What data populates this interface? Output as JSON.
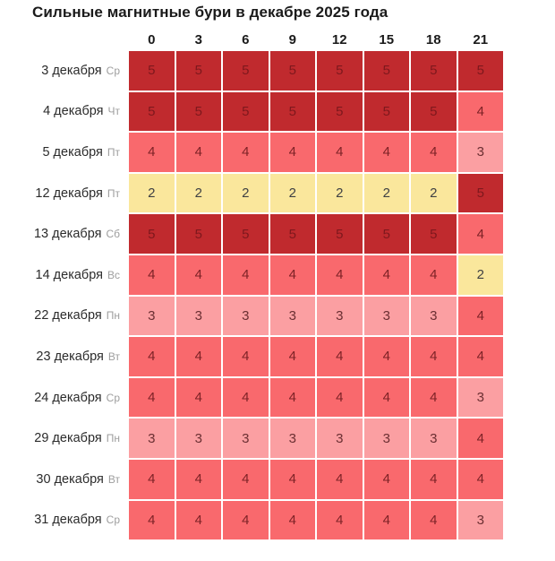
{
  "chart_data": {
    "type": "heatmap",
    "title": "Сильные магнитные бури в декабре 2025 года",
    "columns": [
      "0",
      "3",
      "6",
      "9",
      "12",
      "15",
      "18",
      "21"
    ],
    "rows": [
      {
        "date": "3 декабря",
        "day": "Ср",
        "values": [
          5,
          5,
          5,
          5,
          5,
          5,
          5,
          5
        ]
      },
      {
        "date": "4 декабря",
        "day": "Чт",
        "values": [
          5,
          5,
          5,
          5,
          5,
          5,
          5,
          4
        ]
      },
      {
        "date": "5 декабря",
        "day": "Пт",
        "values": [
          4,
          4,
          4,
          4,
          4,
          4,
          4,
          3
        ]
      },
      {
        "date": "12 декабря",
        "day": "Пт",
        "values": [
          2,
          2,
          2,
          2,
          2,
          2,
          2,
          5
        ]
      },
      {
        "date": "13 декабря",
        "day": "Сб",
        "values": [
          5,
          5,
          5,
          5,
          5,
          5,
          5,
          4
        ]
      },
      {
        "date": "14 декабря",
        "day": "Вс",
        "values": [
          4,
          4,
          4,
          4,
          4,
          4,
          4,
          2
        ]
      },
      {
        "date": "22 декабря",
        "day": "Пн",
        "values": [
          3,
          3,
          3,
          3,
          3,
          3,
          3,
          4
        ]
      },
      {
        "date": "23 декабря",
        "day": "Вт",
        "values": [
          4,
          4,
          4,
          4,
          4,
          4,
          4,
          4
        ]
      },
      {
        "date": "24 декабря",
        "day": "Ср",
        "values": [
          4,
          4,
          4,
          4,
          4,
          4,
          4,
          3
        ]
      },
      {
        "date": "29 декабря",
        "day": "Пн",
        "values": [
          3,
          3,
          3,
          3,
          3,
          3,
          3,
          4
        ]
      },
      {
        "date": "30 декабря",
        "day": "Вт",
        "values": [
          4,
          4,
          4,
          4,
          4,
          4,
          4,
          4
        ]
      },
      {
        "date": "31 декабря",
        "day": "Ср",
        "values": [
          4,
          4,
          4,
          4,
          4,
          4,
          4,
          3
        ]
      }
    ],
    "levels": {
      "2": {
        "bg": "#fae79c",
        "text": "#3f4043"
      },
      "3": {
        "bg": "#fb9fa2",
        "text": "#6b2f32"
      },
      "4": {
        "bg": "#f9696d",
        "text": "#7d2226"
      },
      "5": {
        "bg": "#c02a2e",
        "text": "#7e181d"
      }
    }
  }
}
